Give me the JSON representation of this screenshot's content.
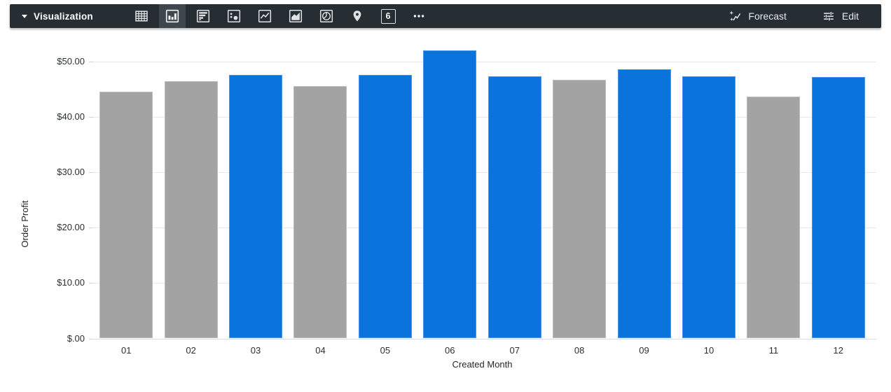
{
  "toolbar": {
    "title": "Visualization",
    "forecast_label": "Forecast",
    "edit_label": "Edit",
    "single_value_glyph": "6",
    "icons": [
      {
        "name": "table-icon",
        "selected": false
      },
      {
        "name": "column-chart-icon",
        "selected": true
      },
      {
        "name": "bar-chart-icon",
        "selected": false
      },
      {
        "name": "scatter-chart-icon",
        "selected": false
      },
      {
        "name": "line-chart-icon",
        "selected": false
      },
      {
        "name": "area-chart-icon",
        "selected": false
      },
      {
        "name": "pie-chart-icon",
        "selected": false
      },
      {
        "name": "map-icon",
        "selected": false
      },
      {
        "name": "single-value-icon",
        "selected": false
      },
      {
        "name": "more-options-icon",
        "selected": false
      }
    ],
    "colors": {
      "background": "#262D33",
      "selected_background": "#3E464E",
      "icon": "#DFE1E5",
      "text": "#E8EAED"
    }
  },
  "chart_data": {
    "type": "bar",
    "title": "",
    "xlabel": "Created Month",
    "ylabel": "Order Profit",
    "categories": [
      "01",
      "02",
      "03",
      "04",
      "05",
      "06",
      "07",
      "08",
      "09",
      "10",
      "11",
      "12"
    ],
    "values": [
      44.6,
      46.4,
      47.6,
      45.6,
      47.6,
      52.0,
      47.3,
      46.7,
      48.6,
      47.4,
      43.7,
      47.2
    ],
    "bar_color_keys": [
      "gray",
      "gray",
      "blue",
      "gray",
      "blue",
      "blue",
      "blue",
      "gray",
      "blue",
      "blue",
      "gray",
      "blue"
    ],
    "colors": {
      "blue": "#0A73DC",
      "gray": "#A3A3A3",
      "blue_border": "#4D95E8",
      "gray_border": "#B9BDC1"
    },
    "y_ticks": [
      {
        "value": 0,
        "label": "$.00"
      },
      {
        "value": 10,
        "label": "$10.00"
      },
      {
        "value": 20,
        "label": "$20.00"
      },
      {
        "value": 30,
        "label": "$30.00"
      },
      {
        "value": 40,
        "label": "$40.00"
      },
      {
        "value": 50,
        "label": "$50.00"
      }
    ],
    "ylim": [
      0,
      53.5
    ],
    "grid": true,
    "legend": "none"
  }
}
